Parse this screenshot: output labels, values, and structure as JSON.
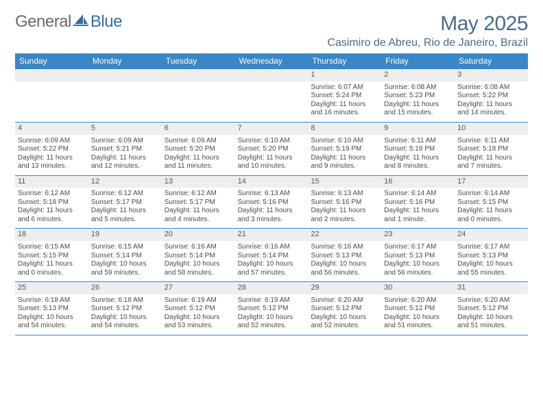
{
  "logo": {
    "general": "General",
    "blue": "Blue"
  },
  "title": "May 2025",
  "location": "Casimiro de Abreu, Rio de Janeiro, Brazil",
  "colors": {
    "header_bar": "#3b86c4",
    "day_num_bg": "#eeeeee",
    "title_color": "#4a6a8a",
    "rule_color": "#3b86c4",
    "logo_blue": "#2f6fa8"
  },
  "dow": [
    "Sunday",
    "Monday",
    "Tuesday",
    "Wednesday",
    "Thursday",
    "Friday",
    "Saturday"
  ],
  "weeks": [
    [
      {
        "n": "",
        "sr": "",
        "ss": "",
        "d1": "",
        "d2": ""
      },
      {
        "n": "",
        "sr": "",
        "ss": "",
        "d1": "",
        "d2": ""
      },
      {
        "n": "",
        "sr": "",
        "ss": "",
        "d1": "",
        "d2": ""
      },
      {
        "n": "",
        "sr": "",
        "ss": "",
        "d1": "",
        "d2": ""
      },
      {
        "n": "1",
        "sr": "Sunrise: 6:07 AM",
        "ss": "Sunset: 5:24 PM",
        "d1": "Daylight: 11 hours",
        "d2": "and 16 minutes."
      },
      {
        "n": "2",
        "sr": "Sunrise: 6:08 AM",
        "ss": "Sunset: 5:23 PM",
        "d1": "Daylight: 11 hours",
        "d2": "and 15 minutes."
      },
      {
        "n": "3",
        "sr": "Sunrise: 6:08 AM",
        "ss": "Sunset: 5:22 PM",
        "d1": "Daylight: 11 hours",
        "d2": "and 14 minutes."
      }
    ],
    [
      {
        "n": "4",
        "sr": "Sunrise: 6:09 AM",
        "ss": "Sunset: 5:22 PM",
        "d1": "Daylight: 11 hours",
        "d2": "and 13 minutes."
      },
      {
        "n": "5",
        "sr": "Sunrise: 6:09 AM",
        "ss": "Sunset: 5:21 PM",
        "d1": "Daylight: 11 hours",
        "d2": "and 12 minutes."
      },
      {
        "n": "6",
        "sr": "Sunrise: 6:09 AM",
        "ss": "Sunset: 5:20 PM",
        "d1": "Daylight: 11 hours",
        "d2": "and 11 minutes."
      },
      {
        "n": "7",
        "sr": "Sunrise: 6:10 AM",
        "ss": "Sunset: 5:20 PM",
        "d1": "Daylight: 11 hours",
        "d2": "and 10 minutes."
      },
      {
        "n": "8",
        "sr": "Sunrise: 6:10 AM",
        "ss": "Sunset: 5:19 PM",
        "d1": "Daylight: 11 hours",
        "d2": "and 9 minutes."
      },
      {
        "n": "9",
        "sr": "Sunrise: 6:11 AM",
        "ss": "Sunset: 5:19 PM",
        "d1": "Daylight: 11 hours",
        "d2": "and 8 minutes."
      },
      {
        "n": "10",
        "sr": "Sunrise: 6:11 AM",
        "ss": "Sunset: 5:18 PM",
        "d1": "Daylight: 11 hours",
        "d2": "and 7 minutes."
      }
    ],
    [
      {
        "n": "11",
        "sr": "Sunrise: 6:12 AM",
        "ss": "Sunset: 5:18 PM",
        "d1": "Daylight: 11 hours",
        "d2": "and 6 minutes."
      },
      {
        "n": "12",
        "sr": "Sunrise: 6:12 AM",
        "ss": "Sunset: 5:17 PM",
        "d1": "Daylight: 11 hours",
        "d2": "and 5 minutes."
      },
      {
        "n": "13",
        "sr": "Sunrise: 6:12 AM",
        "ss": "Sunset: 5:17 PM",
        "d1": "Daylight: 11 hours",
        "d2": "and 4 minutes."
      },
      {
        "n": "14",
        "sr": "Sunrise: 6:13 AM",
        "ss": "Sunset: 5:16 PM",
        "d1": "Daylight: 11 hours",
        "d2": "and 3 minutes."
      },
      {
        "n": "15",
        "sr": "Sunrise: 6:13 AM",
        "ss": "Sunset: 5:16 PM",
        "d1": "Daylight: 11 hours",
        "d2": "and 2 minutes."
      },
      {
        "n": "16",
        "sr": "Sunrise: 6:14 AM",
        "ss": "Sunset: 5:16 PM",
        "d1": "Daylight: 11 hours",
        "d2": "and 1 minute."
      },
      {
        "n": "17",
        "sr": "Sunrise: 6:14 AM",
        "ss": "Sunset: 5:15 PM",
        "d1": "Daylight: 11 hours",
        "d2": "and 0 minutes."
      }
    ],
    [
      {
        "n": "18",
        "sr": "Sunrise: 6:15 AM",
        "ss": "Sunset: 5:15 PM",
        "d1": "Daylight: 11 hours",
        "d2": "and 0 minutes."
      },
      {
        "n": "19",
        "sr": "Sunrise: 6:15 AM",
        "ss": "Sunset: 5:14 PM",
        "d1": "Daylight: 10 hours",
        "d2": "and 59 minutes."
      },
      {
        "n": "20",
        "sr": "Sunrise: 6:16 AM",
        "ss": "Sunset: 5:14 PM",
        "d1": "Daylight: 10 hours",
        "d2": "and 58 minutes."
      },
      {
        "n": "21",
        "sr": "Sunrise: 6:16 AM",
        "ss": "Sunset: 5:14 PM",
        "d1": "Daylight: 10 hours",
        "d2": "and 57 minutes."
      },
      {
        "n": "22",
        "sr": "Sunrise: 6:16 AM",
        "ss": "Sunset: 5:13 PM",
        "d1": "Daylight: 10 hours",
        "d2": "and 56 minutes."
      },
      {
        "n": "23",
        "sr": "Sunrise: 6:17 AM",
        "ss": "Sunset: 5:13 PM",
        "d1": "Daylight: 10 hours",
        "d2": "and 56 minutes."
      },
      {
        "n": "24",
        "sr": "Sunrise: 6:17 AM",
        "ss": "Sunset: 5:13 PM",
        "d1": "Daylight: 10 hours",
        "d2": "and 55 minutes."
      }
    ],
    [
      {
        "n": "25",
        "sr": "Sunrise: 6:18 AM",
        "ss": "Sunset: 5:13 PM",
        "d1": "Daylight: 10 hours",
        "d2": "and 54 minutes."
      },
      {
        "n": "26",
        "sr": "Sunrise: 6:18 AM",
        "ss": "Sunset: 5:12 PM",
        "d1": "Daylight: 10 hours",
        "d2": "and 54 minutes."
      },
      {
        "n": "27",
        "sr": "Sunrise: 6:19 AM",
        "ss": "Sunset: 5:12 PM",
        "d1": "Daylight: 10 hours",
        "d2": "and 53 minutes."
      },
      {
        "n": "28",
        "sr": "Sunrise: 6:19 AM",
        "ss": "Sunset: 5:12 PM",
        "d1": "Daylight: 10 hours",
        "d2": "and 52 minutes."
      },
      {
        "n": "29",
        "sr": "Sunrise: 6:20 AM",
        "ss": "Sunset: 5:12 PM",
        "d1": "Daylight: 10 hours",
        "d2": "and 52 minutes."
      },
      {
        "n": "30",
        "sr": "Sunrise: 6:20 AM",
        "ss": "Sunset: 5:12 PM",
        "d1": "Daylight: 10 hours",
        "d2": "and 51 minutes."
      },
      {
        "n": "31",
        "sr": "Sunrise: 6:20 AM",
        "ss": "Sunset: 5:12 PM",
        "d1": "Daylight: 10 hours",
        "d2": "and 51 minutes."
      }
    ]
  ]
}
